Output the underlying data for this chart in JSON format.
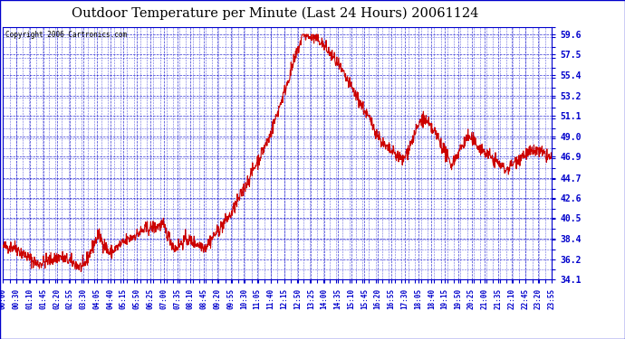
{
  "title": "Outdoor Temperature per Minute (Last 24 Hours) 20061124",
  "copyright": "Copyright 2006 Cartronics.com",
  "background_color": "#ffffff",
  "plot_background": "#ffffff",
  "line_color": "#cc0000",
  "grid_color": "#0000cc",
  "text_color": "#0000cc",
  "title_color": "#000000",
  "y_ticks": [
    34.1,
    36.2,
    38.4,
    40.5,
    42.6,
    44.7,
    46.9,
    49.0,
    51.1,
    53.2,
    55.4,
    57.5,
    59.6
  ],
  "y_min": 34.1,
  "y_max": 59.6,
  "x_tick_labels": [
    "00:00",
    "00:30",
    "01:10",
    "01:45",
    "02:20",
    "02:55",
    "03:30",
    "04:05",
    "04:40",
    "05:15",
    "05:50",
    "06:25",
    "07:00",
    "07:35",
    "08:10",
    "08:45",
    "09:20",
    "09:55",
    "10:30",
    "11:05",
    "11:40",
    "12:15",
    "12:50",
    "13:25",
    "14:00",
    "14:35",
    "15:10",
    "15:45",
    "16:20",
    "16:55",
    "17:30",
    "18:05",
    "18:40",
    "19:15",
    "19:50",
    "20:25",
    "21:00",
    "21:35",
    "22:10",
    "22:45",
    "23:20",
    "23:55"
  ],
  "num_minutes": 1440,
  "seed": 42
}
